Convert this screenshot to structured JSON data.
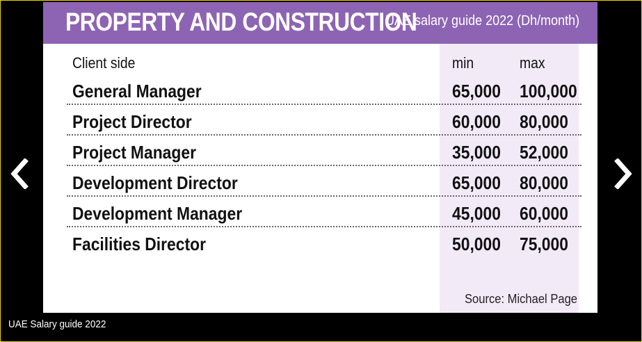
{
  "slide": {
    "title": "PROPERTY AND CONSTRUCTION",
    "subtitle": "UAE salary guide 2022 (Dh/month)",
    "accent_color": "#8d64b3",
    "table": {
      "section_label": "Client side",
      "col_min": "min",
      "col_max": "max",
      "rows": [
        {
          "role": "General Manager",
          "min": "65,000",
          "max": "100,000"
        },
        {
          "role": "Project Director",
          "min": "60,000",
          "max": "80,000"
        },
        {
          "role": "Project Manager",
          "min": "35,000",
          "max": "52,000"
        },
        {
          "role": "Development Director",
          "min": "65,000",
          "max": "80,000"
        },
        {
          "role": "Development Manager",
          "min": "45,000",
          "max": "60,000"
        },
        {
          "role": "Facilities Director",
          "min": "50,000",
          "max": "75,000"
        }
      ]
    },
    "source": "Source: Michael Page"
  },
  "caption": "UAE Salary guide 2022",
  "nav": {
    "prev_icon": "chevron-left-icon",
    "next_icon": "chevron-right-icon"
  }
}
